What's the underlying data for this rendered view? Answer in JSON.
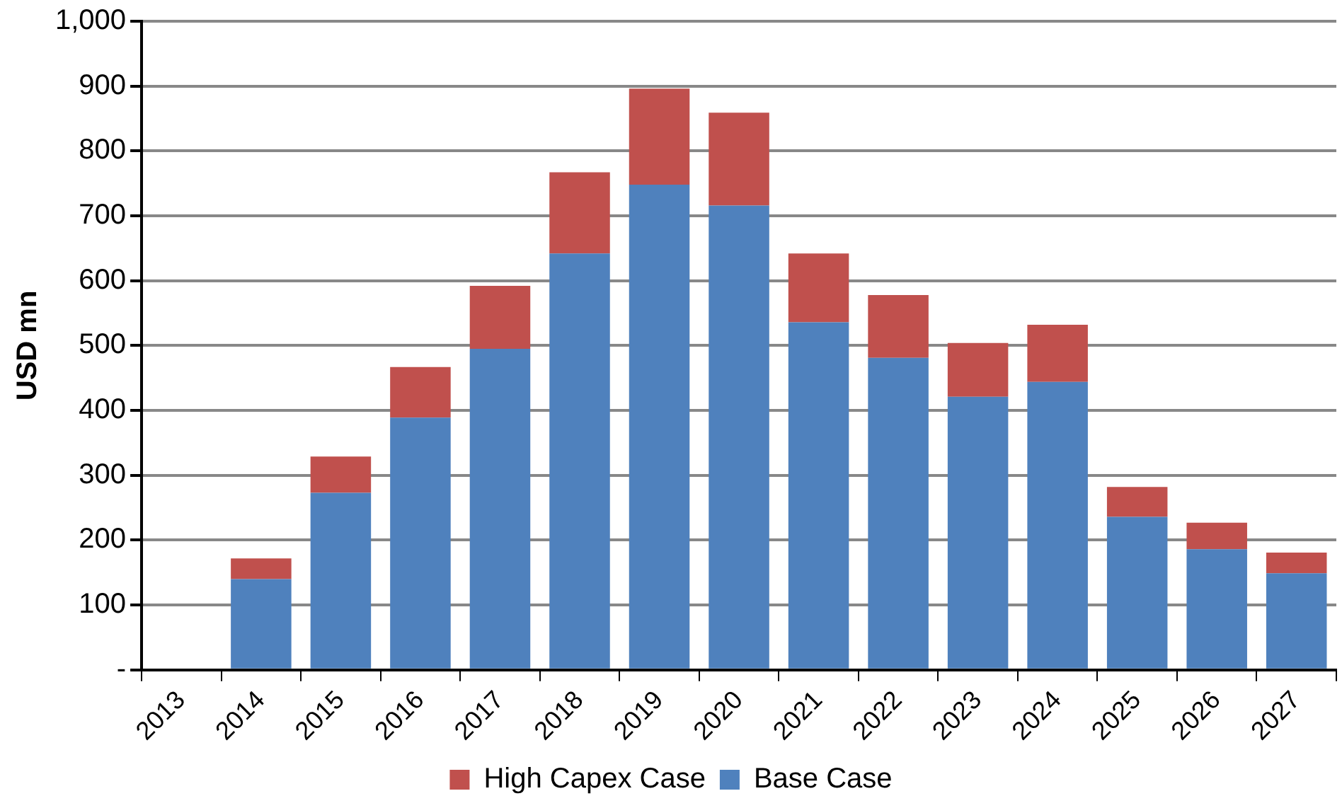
{
  "chart_data": {
    "type": "bar",
    "stacked": true,
    "ylabel": "USD mn",
    "categories": [
      "2013",
      "2014",
      "2015",
      "2016",
      "2017",
      "2018",
      "2019",
      "2020",
      "2021",
      "2022",
      "2023",
      "2024",
      "2025",
      "2026",
      "2027"
    ],
    "series": [
      {
        "name": "Base Case",
        "color": "#4f81bd",
        "values": [
          null,
          140,
          273,
          389,
          495,
          642,
          748,
          716,
          536,
          481,
          421,
          444,
          236,
          186,
          149
        ]
      },
      {
        "name": "High Capex Case",
        "color": "#c0504d",
        "values": [
          null,
          32,
          56,
          78,
          97,
          125,
          148,
          143,
          106,
          97,
          83,
          88,
          46,
          41,
          32
        ]
      }
    ],
    "ylim": [
      0,
      1000
    ],
    "yticks": [
      {
        "value": 0,
        "label": "-"
      },
      100,
      200,
      300,
      400,
      500,
      600,
      700,
      800,
      900,
      {
        "value": 1000,
        "label": "1,000"
      }
    ],
    "grid": "y",
    "legend": "bottom"
  }
}
